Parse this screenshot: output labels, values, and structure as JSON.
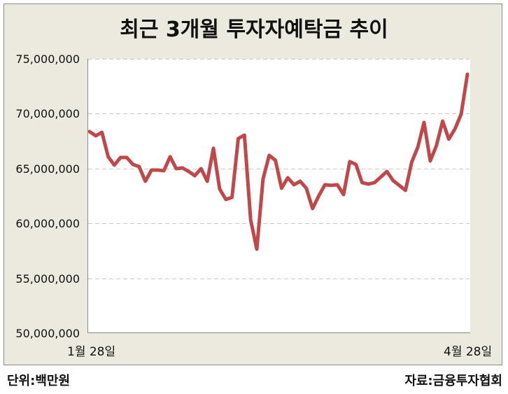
{
  "chart_data": {
    "type": "line",
    "title": "최근 3개월 투자자예탁금 추이",
    "xlabel": "",
    "ylabel": "",
    "unit_note": "단위:백만원",
    "source": "자료:금융투자협회",
    "x_tick_labels": [
      "1월 28일",
      "4월 28일"
    ],
    "y_tick_labels": [
      "75,000,000",
      "70,000,000",
      "65,000,000",
      "60,000,000",
      "55,000,000",
      "50,000,000"
    ],
    "ylim": [
      50000000,
      75000000
    ],
    "grid": "horizontal dashed",
    "legend": "none",
    "line_color": "#C0474A",
    "series": [
      {
        "name": "투자자예탁금",
        "values": [
          68370000,
          67980000,
          68300000,
          66070000,
          65310000,
          66010000,
          66010000,
          65370000,
          65180000,
          63840000,
          64860000,
          64860000,
          64800000,
          66070000,
          64990000,
          65050000,
          64730000,
          64350000,
          64990000,
          63840000,
          66840000,
          63140000,
          62180000,
          62370000,
          67730000,
          68050000,
          60330000,
          57650000,
          64030000,
          66200000,
          65750000,
          63200000,
          64160000,
          63520000,
          63840000,
          63200000,
          61350000,
          62500000,
          63520000,
          63460000,
          63520000,
          62630000,
          65630000,
          65370000,
          63710000,
          63580000,
          63710000,
          64220000,
          64730000,
          63900000,
          63460000,
          63010000,
          65560000,
          66960000,
          69200000,
          65690000,
          67090000,
          69320000,
          67670000,
          68620000,
          69960000,
          73600000
        ]
      }
    ]
  },
  "header": {
    "title": "최근 3개월 투자자예탁금 추이"
  },
  "axis": {
    "y": [
      "75,000,000",
      "70,000,000",
      "65,000,000",
      "60,000,000",
      "55,000,000",
      "50,000,000"
    ],
    "x_start": "1월 28일",
    "x_end": "4월 28일"
  },
  "footer": {
    "unit": "단위:백만원",
    "source": "자료:금융투자협회"
  },
  "colors": {
    "line": "#C0474A",
    "panel": "#ECE9DF",
    "plot": "#FFFFFF",
    "grid": "#C8C8C8"
  }
}
